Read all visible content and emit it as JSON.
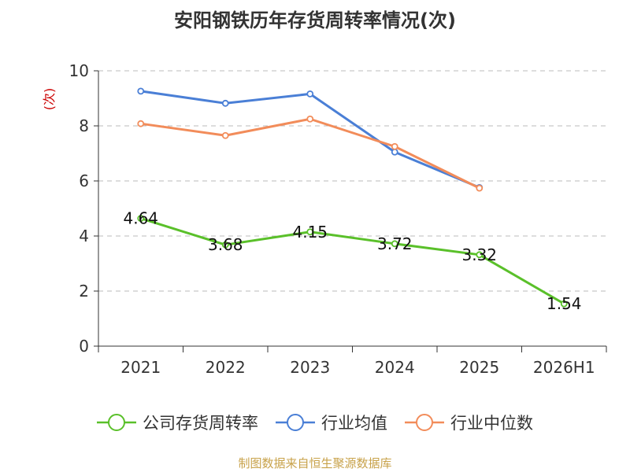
{
  "chart_data": {
    "type": "line",
    "title": "安阳钢铁历年存货周转率情况(次)",
    "ylabel": "(次)",
    "xlabel": "",
    "categories": [
      "2021",
      "2022",
      "2023",
      "2024",
      "2025",
      "2026H1"
    ],
    "ylim": [
      0,
      10
    ],
    "yticks": [
      0,
      2,
      4,
      6,
      8,
      10
    ],
    "grid": true,
    "legend_position": "bottom",
    "series": [
      {
        "name": "公司存货周转率",
        "color": "#5ac02a",
        "values": [
          4.64,
          3.68,
          4.15,
          3.72,
          3.32,
          1.54
        ],
        "data_labels": [
          "4.64",
          "3.68",
          "4.15",
          "3.72",
          "3.32",
          "1.54"
        ]
      },
      {
        "name": "行业均值",
        "color": "#4a7fd6",
        "values": [
          9.26,
          8.82,
          9.16,
          7.05,
          5.76,
          null
        ]
      },
      {
        "name": "行业中位数",
        "color": "#f28c5a",
        "values": [
          8.08,
          7.65,
          8.25,
          7.25,
          5.74,
          null
        ]
      }
    ]
  },
  "footer": {
    "source": "制图数据来自恒生聚源数据库"
  }
}
